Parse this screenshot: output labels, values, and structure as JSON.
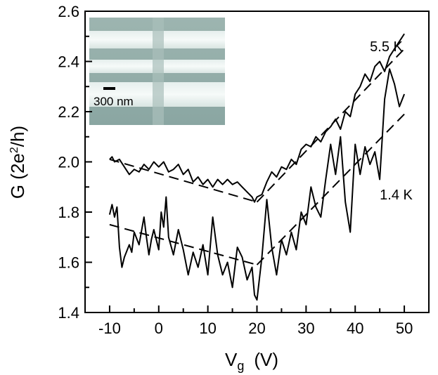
{
  "chart_data": {
    "type": "line",
    "title": "",
    "xlabel": "V",
    "xlabel_sub": "g",
    "xlabel_unit": "(V)",
    "ylabel": "G (2e",
    "ylabel_sup": "2",
    "ylabel_unit": "/h)",
    "xlim": [
      -15,
      55
    ],
    "ylim": [
      1.4,
      2.6
    ],
    "xticks": [
      -10,
      0,
      10,
      20,
      30,
      40,
      50
    ],
    "xtick_labels": [
      "-10",
      "0",
      "10",
      "20",
      "30",
      "40",
      "50"
    ],
    "yticks": [
      1.4,
      1.6,
      1.8,
      2.0,
      2.2,
      2.4,
      2.6
    ],
    "ytick_labels": [
      "1.4",
      "1.6",
      "1.8",
      "2.0",
      "2.2",
      "2.4",
      "2.6"
    ],
    "grid": false,
    "legend": "none",
    "series": [
      {
        "name": "5.5 K",
        "style": "solid",
        "points": [
          [
            -10,
            2.01
          ],
          [
            -9.5,
            2.02
          ],
          [
            -9,
            2.0
          ],
          [
            -8,
            2.01
          ],
          [
            -7,
            1.98
          ],
          [
            -6,
            1.95
          ],
          [
            -5,
            1.97
          ],
          [
            -4,
            1.96
          ],
          [
            -3,
            1.99
          ],
          [
            -2,
            1.97
          ],
          [
            -1,
            2.0
          ],
          [
            0,
            1.98
          ],
          [
            1,
            2.0
          ],
          [
            2,
            1.96
          ],
          [
            3,
            1.97
          ],
          [
            4,
            1.99
          ],
          [
            5,
            1.95
          ],
          [
            6,
            1.97
          ],
          [
            7,
            1.92
          ],
          [
            8,
            1.94
          ],
          [
            9,
            1.91
          ],
          [
            10,
            1.93
          ],
          [
            11,
            1.9
          ],
          [
            12,
            1.93
          ],
          [
            13,
            1.91
          ],
          [
            14,
            1.93
          ],
          [
            15,
            1.91
          ],
          [
            16,
            1.92
          ],
          [
            17,
            1.9
          ],
          [
            18,
            1.88
          ],
          [
            19,
            1.86
          ],
          [
            19.5,
            1.84
          ],
          [
            20,
            1.86
          ],
          [
            21,
            1.87
          ],
          [
            22,
            1.92
          ],
          [
            23,
            1.96
          ],
          [
            24,
            1.94
          ],
          [
            25,
            1.98
          ],
          [
            26,
            1.97
          ],
          [
            27,
            2.01
          ],
          [
            28,
            1.99
          ],
          [
            29,
            2.05
          ],
          [
            30,
            2.07
          ],
          [
            31,
            2.06
          ],
          [
            32,
            2.1
          ],
          [
            33,
            2.08
          ],
          [
            34,
            2.12
          ],
          [
            35,
            2.14
          ],
          [
            36,
            2.17
          ],
          [
            37,
            2.13
          ],
          [
            38,
            2.2
          ],
          [
            39,
            2.18
          ],
          [
            40,
            2.27
          ],
          [
            41,
            2.3
          ],
          [
            42,
            2.35
          ],
          [
            43,
            2.32
          ],
          [
            44,
            2.38
          ],
          [
            45,
            2.4
          ],
          [
            46,
            2.36
          ],
          [
            47,
            2.42
          ],
          [
            48,
            2.45
          ],
          [
            49,
            2.48
          ],
          [
            50,
            2.51
          ]
        ]
      },
      {
        "name": "1.4 K",
        "style": "solid",
        "points": [
          [
            -10,
            1.79
          ],
          [
            -9.5,
            1.83
          ],
          [
            -9,
            1.78
          ],
          [
            -8.5,
            1.82
          ],
          [
            -8,
            1.66
          ],
          [
            -7.5,
            1.58
          ],
          [
            -7,
            1.62
          ],
          [
            -6,
            1.67
          ],
          [
            -5.5,
            1.64
          ],
          [
            -5,
            1.72
          ],
          [
            -4,
            1.67
          ],
          [
            -3,
            1.78
          ],
          [
            -2.5,
            1.7
          ],
          [
            -2,
            1.63
          ],
          [
            -1.5,
            1.69
          ],
          [
            -1,
            1.73
          ],
          [
            0,
            1.65
          ],
          [
            0.5,
            1.8
          ],
          [
            1,
            1.74
          ],
          [
            1.5,
            1.86
          ],
          [
            2,
            1.7
          ],
          [
            3,
            1.63
          ],
          [
            4,
            1.73
          ],
          [
            5,
            1.65
          ],
          [
            6,
            1.55
          ],
          [
            7,
            1.64
          ],
          [
            8,
            1.58
          ],
          [
            9,
            1.67
          ],
          [
            10,
            1.55
          ],
          [
            11,
            1.78
          ],
          [
            12,
            1.63
          ],
          [
            13,
            1.55
          ],
          [
            14,
            1.6
          ],
          [
            15,
            1.5
          ],
          [
            16,
            1.66
          ],
          [
            17,
            1.62
          ],
          [
            18,
            1.53
          ],
          [
            19,
            1.58
          ],
          [
            19.5,
            1.47
          ],
          [
            20,
            1.45
          ],
          [
            21,
            1.62
          ],
          [
            22,
            1.85
          ],
          [
            23,
            1.66
          ],
          [
            24,
            1.55
          ],
          [
            25,
            1.69
          ],
          [
            26,
            1.63
          ],
          [
            27,
            1.72
          ],
          [
            28,
            1.65
          ],
          [
            29,
            1.8
          ],
          [
            30,
            1.75
          ],
          [
            31,
            1.9
          ],
          [
            32,
            1.82
          ],
          [
            33,
            1.78
          ],
          [
            34,
            1.93
          ],
          [
            35,
            2.07
          ],
          [
            36,
            1.95
          ],
          [
            37,
            2.1
          ],
          [
            38,
            1.84
          ],
          [
            39,
            1.72
          ],
          [
            40,
            2.07
          ],
          [
            41,
            1.95
          ],
          [
            42,
            2.06
          ],
          [
            43,
            1.99
          ],
          [
            44,
            2.04
          ],
          [
            45,
            1.93
          ],
          [
            46,
            2.25
          ],
          [
            47,
            2.37
          ],
          [
            48,
            2.31
          ],
          [
            49,
            2.22
          ],
          [
            50,
            2.27
          ]
        ]
      }
    ],
    "fits": [
      {
        "style": "dashed",
        "points": [
          [
            -10,
            2.01
          ],
          [
            20,
            1.84
          ]
        ]
      },
      {
        "style": "dashed",
        "points": [
          [
            20,
            1.84
          ],
          [
            50,
            2.45
          ]
        ]
      },
      {
        "style": "dashed",
        "points": [
          [
            -10,
            1.75
          ],
          [
            20,
            1.59
          ]
        ]
      },
      {
        "style": "dashed",
        "points": [
          [
            20,
            1.59
          ],
          [
            50,
            2.19
          ]
        ]
      }
    ],
    "annotations": [
      {
        "text": "5.5 K",
        "x": 43,
        "y": 2.44
      },
      {
        "text": "1.4 K",
        "x": 45,
        "y": 1.85
      }
    ],
    "inset": {
      "scale_bar_label": "300 nm"
    }
  }
}
